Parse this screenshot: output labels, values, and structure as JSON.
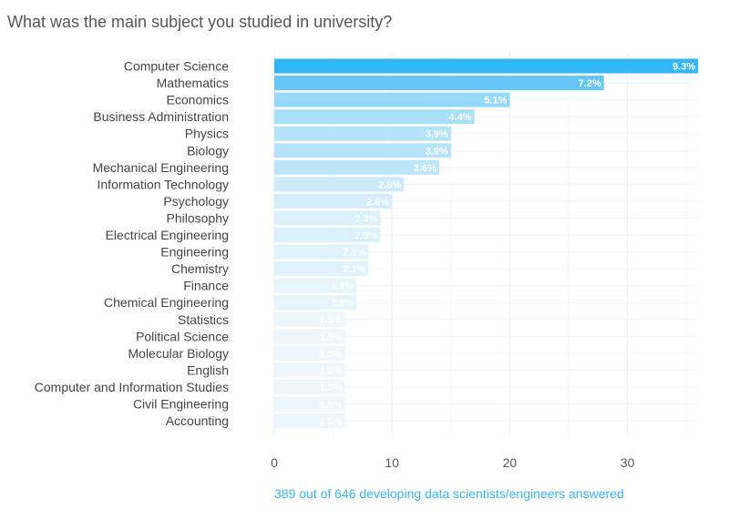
{
  "title": "What was the main subject you studied in university?",
  "caption": "389 out of 646 developing data scientists/engineers answered",
  "chart_data": {
    "type": "bar",
    "orientation": "horizontal",
    "title": "What was the main subject you studied in university?",
    "xlabel": "",
    "ylabel": "",
    "xlim": [
      0,
      36
    ],
    "x_ticks": [
      0,
      10,
      20,
      30
    ],
    "grid": true,
    "accent_color": "#33b6f5",
    "categories": [
      "Computer Science",
      "Mathematics",
      "Economics",
      "Business Administration",
      "Physics",
      "Biology",
      "Mechanical Engineering",
      "Information Technology",
      "Psychology",
      "Philosophy",
      "Electrical Engineering",
      "Engineering",
      "Chemistry",
      "Finance",
      "Chemical Engineering",
      "Statistics",
      "Political Science",
      "Molecular Biology",
      "English",
      "Computer and Information Studies",
      "Civil Engineering",
      "Accounting"
    ],
    "values": [
      36,
      28,
      20,
      17,
      15,
      15,
      14,
      11,
      10,
      9,
      9,
      8,
      8,
      7,
      7,
      6,
      6,
      6,
      6,
      6,
      6,
      6
    ],
    "labels": [
      "9.3%",
      "7.2%",
      "5.1%",
      "4.4%",
      "3.9%",
      "3.9%",
      "3.6%",
      "2.8%",
      "2.6%",
      "2.3%",
      "2.3%",
      "2.1%",
      "2.1%",
      "1.8%",
      "1.8%",
      "1.5%",
      "1.5%",
      "1.5%",
      "1.5%",
      "1.5%",
      "1.5%",
      "1.5%"
    ]
  }
}
